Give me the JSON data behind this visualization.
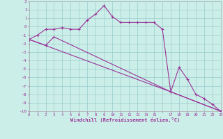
{
  "xlabel": "Windchill (Refroidissement éolien,°C)",
  "bg_color": "#cceee8",
  "grid_color": "#99cccc",
  "line_color": "#993399",
  "xlim": [
    0,
    23
  ],
  "ylim": [
    -10,
    3
  ],
  "line1_x": [
    0,
    1,
    2,
    3,
    4,
    5,
    6,
    7,
    8,
    9,
    10,
    11,
    12,
    13,
    14,
    15,
    16,
    17,
    18,
    19,
    20,
    21,
    22,
    23
  ],
  "line1_y": [
    -1.5,
    -1.0,
    -0.3,
    -0.3,
    -0.1,
    -0.3,
    -0.3,
    0.8,
    1.5,
    2.5,
    1.2,
    0.5,
    0.5,
    0.5,
    0.5,
    0.5,
    -0.3,
    -7.7,
    -4.8,
    -6.2,
    -8.0,
    -8.5,
    -9.2,
    -10.0
  ],
  "line2_x": [
    0,
    2,
    3,
    17,
    23
  ],
  "line2_y": [
    -1.5,
    -2.2,
    -1.2,
    -7.7,
    -10.0
  ],
  "line3_x": [
    0,
    17,
    23
  ],
  "line3_y": [
    -1.5,
    -7.7,
    -10.0
  ]
}
